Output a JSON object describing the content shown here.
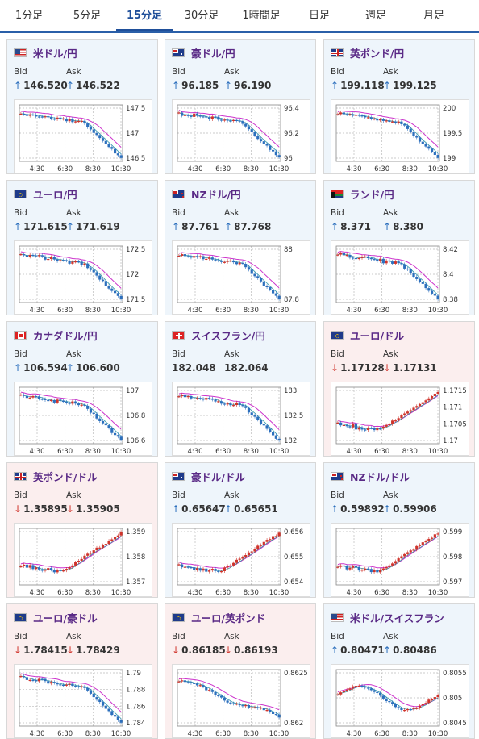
{
  "tabs": [
    {
      "label": "1分足",
      "active": false
    },
    {
      "label": "5分足",
      "active": false
    },
    {
      "label": "15分足",
      "active": true
    },
    {
      "label": "30分足",
      "active": false
    },
    {
      "label": "1時間足",
      "active": false
    },
    {
      "label": "日足",
      "active": false
    },
    {
      "label": "週足",
      "active": false
    },
    {
      "label": "月足",
      "active": false
    }
  ],
  "labels": {
    "bid": "Bid",
    "ask": "Ask"
  },
  "colors": {
    "up": "#2c6fbd",
    "down": "#d0342c",
    "ma": "#cc33cc",
    "ma2": "#3399aa"
  },
  "cards": [
    {
      "name": "米ドル/円",
      "flag": "us",
      "trend": "up",
      "bid": "146.520",
      "ask": "146.522",
      "chart_data": {
        "type": "candlestick",
        "x_ticks": [
          "4:30",
          "6:30",
          "8:30",
          "10:30"
        ],
        "y_ticks": [
          "147.5",
          "147",
          "146.5"
        ],
        "shape": "drop"
      }
    },
    {
      "name": "豪ドル/円",
      "flag": "au",
      "trend": "up",
      "bid": "96.185",
      "ask": "96.190",
      "chart_data": {
        "type": "candlestick",
        "x_ticks": [
          "4:30",
          "6:30",
          "8:30",
          "10:30"
        ],
        "y_ticks": [
          "96.4",
          "96.2",
          "96"
        ],
        "shape": "drop"
      }
    },
    {
      "name": "英ポンド/円",
      "flag": "gb",
      "trend": "up",
      "bid": "199.118",
      "ask": "199.125",
      "chart_data": {
        "type": "candlestick",
        "x_ticks": [
          "4:30",
          "6:30",
          "8:30",
          "10:30"
        ],
        "y_ticks": [
          "200",
          "199.5",
          "199"
        ],
        "shape": "drop"
      }
    },
    {
      "name": "ユーロ/円",
      "flag": "eu",
      "trend": "up",
      "bid": "171.615",
      "ask": "171.619",
      "chart_data": {
        "type": "candlestick",
        "x_ticks": [
          "4:30",
          "6:30",
          "8:30",
          "10:30"
        ],
        "y_ticks": [
          "172.5",
          "172",
          "171.5"
        ],
        "shape": "drop"
      }
    },
    {
      "name": "NZドル/円",
      "flag": "nz",
      "trend": "up",
      "bid": "87.761",
      "ask": "87.768",
      "chart_data": {
        "type": "candlestick",
        "x_ticks": [
          "4:30",
          "6:30",
          "8:30",
          "10:30"
        ],
        "y_ticks": [
          "88",
          "87.8"
        ],
        "shape": "drop"
      }
    },
    {
      "name": "ランド/円",
      "flag": "za",
      "trend": "up",
      "bid": "8.371",
      "ask": "8.380",
      "chart_data": {
        "type": "candlestick",
        "x_ticks": [
          "4:30",
          "6:30",
          "8:30",
          "10:30"
        ],
        "y_ticks": [
          "8.42",
          "8.4",
          "8.38"
        ],
        "shape": "drop"
      }
    },
    {
      "name": "カナダドル/円",
      "flag": "ca",
      "trend": "up",
      "bid": "106.594",
      "ask": "106.600",
      "chart_data": {
        "type": "candlestick",
        "x_ticks": [
          "4:30",
          "6:30",
          "8:30",
          "10:30"
        ],
        "y_ticks": [
          "107",
          "106.8",
          "106.6"
        ],
        "shape": "drop"
      }
    },
    {
      "name": "スイスフラン/円",
      "flag": "ch",
      "trend": "up",
      "bid": "182.048",
      "ask": "182.064",
      "no_arrow": true,
      "chart_data": {
        "type": "candlestick",
        "x_ticks": [
          "4:30",
          "6:30",
          "8:30",
          "10:30"
        ],
        "y_ticks": [
          "183",
          "182.5",
          "182"
        ],
        "shape": "drop"
      }
    },
    {
      "name": "ユーロ/ドル",
      "flag": "eu",
      "trend": "down",
      "bid": "1.17128",
      "ask": "1.17131",
      "chart_data": {
        "type": "candlestick",
        "x_ticks": [
          "4:30",
          "6:30",
          "8:30",
          "10:30"
        ],
        "y_ticks": [
          "1.1715",
          "1.171",
          "1.1705",
          "1.17"
        ],
        "shape": "rise"
      }
    },
    {
      "name": "英ポンド/ドル",
      "flag": "gb",
      "trend": "down",
      "bid": "1.35895",
      "ask": "1.35905",
      "chart_data": {
        "type": "candlestick",
        "x_ticks": [
          "4:30",
          "6:30",
          "8:30",
          "10:30"
        ],
        "y_ticks": [
          "1.359",
          "1.358",
          "1.357"
        ],
        "shape": "rise"
      }
    },
    {
      "name": "豪ドル/ドル",
      "flag": "au",
      "trend": "up",
      "bid": "0.65647",
      "ask": "0.65651",
      "chart_data": {
        "type": "candlestick",
        "x_ticks": [
          "4:30",
          "6:30",
          "8:30",
          "10:30"
        ],
        "y_ticks": [
          "0.656",
          "0.655",
          "0.654"
        ],
        "shape": "rise"
      }
    },
    {
      "name": "NZドル/ドル",
      "flag": "nz",
      "trend": "up",
      "bid": "0.59892",
      "ask": "0.59906",
      "chart_data": {
        "type": "candlestick",
        "x_ticks": [
          "4:30",
          "6:30",
          "8:30",
          "10:30"
        ],
        "y_ticks": [
          "0.599",
          "0.598",
          "0.597"
        ],
        "shape": "rise"
      }
    },
    {
      "name": "ユーロ/豪ドル",
      "flag": "eu",
      "trend": "down",
      "bid": "1.78415",
      "ask": "1.78429",
      "chart_data": {
        "type": "candlestick",
        "x_ticks": [
          "4:30",
          "6:30",
          "8:30",
          "10:30"
        ],
        "y_ticks": [
          "1.79",
          "1.788",
          "1.786",
          "1.784"
        ],
        "shape": "drop"
      }
    },
    {
      "name": "ユーロ/英ポンド",
      "flag": "eu",
      "trend": "down",
      "bid": "0.86185",
      "ask": "0.86193",
      "chart_data": {
        "type": "candlestick",
        "x_ticks": [
          "4:30",
          "6:30",
          "8:30",
          "10:30"
        ],
        "y_ticks": [
          "0.8625",
          "0.862"
        ],
        "shape": "fall"
      }
    },
    {
      "name": "米ドル/スイスフラン",
      "flag": "us",
      "trend": "up",
      "bid": "0.80471",
      "ask": "0.80486",
      "chart_data": {
        "type": "candlestick",
        "x_ticks": [
          "4:30",
          "6:30",
          "8:30",
          "10:30"
        ],
        "y_ticks": [
          "0.8055",
          "0.805",
          "0.8045"
        ],
        "shape": "wave"
      }
    }
  ]
}
